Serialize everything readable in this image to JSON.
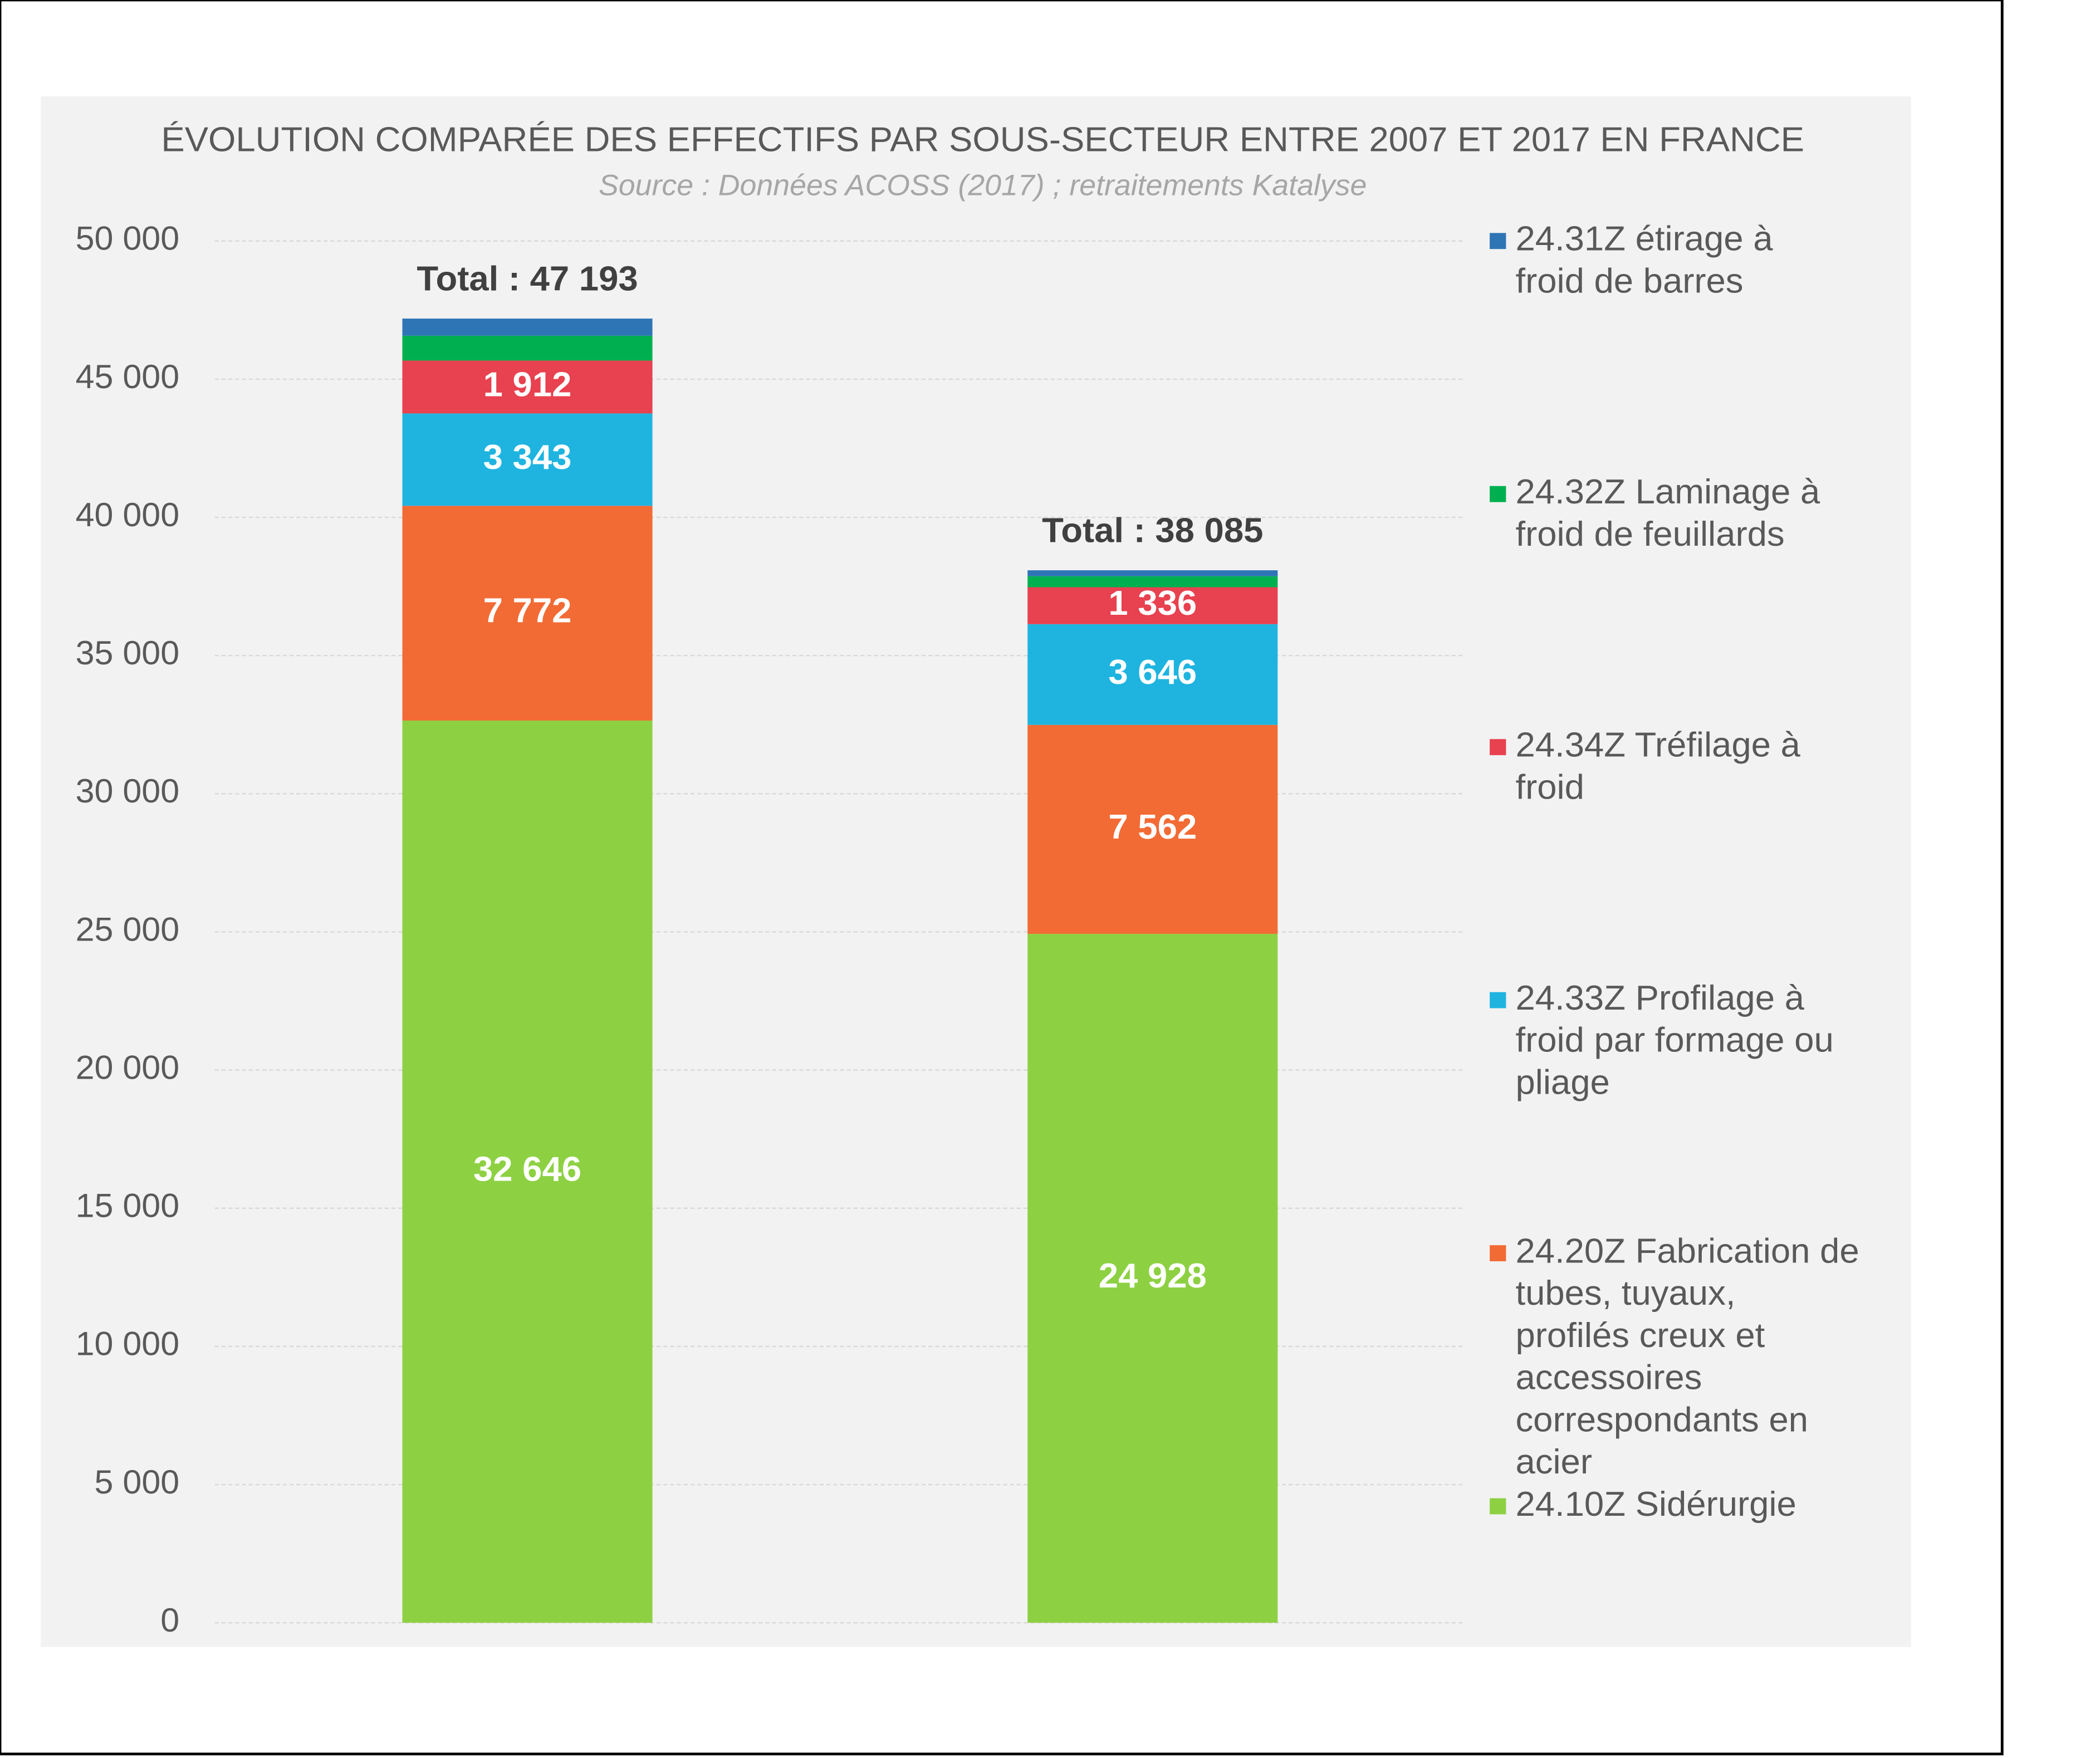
{
  "chart_data": {
    "type": "stacked_bar",
    "title": "ÉVOLUTION COMPARÉE DES EFFECTIFS PAR SOUS-SECTEUR ENTRE 2007 ET 2017 EN FRANCE",
    "subtitle": "Source : Données ACOSS (2017) ; retraitements Katalyse",
    "categories": [
      null,
      null
    ],
    "total_labels": [
      "Total : 47 193",
      "Total : 38 085"
    ],
    "series": [
      {
        "name": "24.10Z Sidérurgie",
        "color": "#8dd143",
        "values": [
          32646,
          24928
        ],
        "value_labels": [
          "32 646",
          "24 928"
        ]
      },
      {
        "name": "24.20Z Fabrication de tubes, tuyaux, profilés creux et accessoires correspondants en acier",
        "color": "#f26b35",
        "values": [
          7772,
          7562
        ],
        "value_labels": [
          "7 772",
          "7 562"
        ]
      },
      {
        "name": "24.33Z Profilage à froid par formage ou pliage",
        "color": "#1fb4e0",
        "values": [
          3343,
          3646
        ],
        "value_labels": [
          "3 343",
          "3 646"
        ]
      },
      {
        "name": "24.34Z Tréfilage à froid",
        "color": "#e8414f",
        "values": [
          1912,
          1336
        ],
        "value_labels": [
          "1 912",
          "1 336"
        ]
      },
      {
        "name": "24.32Z Laminage à froid de feuillards",
        "color": "#00b050",
        "values": [
          900,
          400
        ]
      },
      {
        "name": "24.31Z étirage à froid de barres",
        "color": "#2e75b6",
        "values": [
          620,
          213
        ]
      }
    ],
    "ylim": [
      0,
      50000
    ],
    "yticks": [
      0,
      {
        "value": 5000,
        "label": "5 000"
      },
      {
        "value": 10000,
        "label": "10 000"
      },
      {
        "value": 15000,
        "label": "15 000"
      },
      {
        "value": 20000,
        "label": "20 000"
      },
      {
        "value": 25000,
        "label": "25 000"
      },
      {
        "value": 30000,
        "label": "30 000"
      },
      {
        "value": 35000,
        "label": "35 000"
      },
      {
        "value": 40000,
        "label": "40 000"
      },
      {
        "value": 45000,
        "label": "45 000"
      },
      {
        "value": 50000,
        "label": "50 000"
      }
    ],
    "grid": true,
    "legend": "right"
  }
}
